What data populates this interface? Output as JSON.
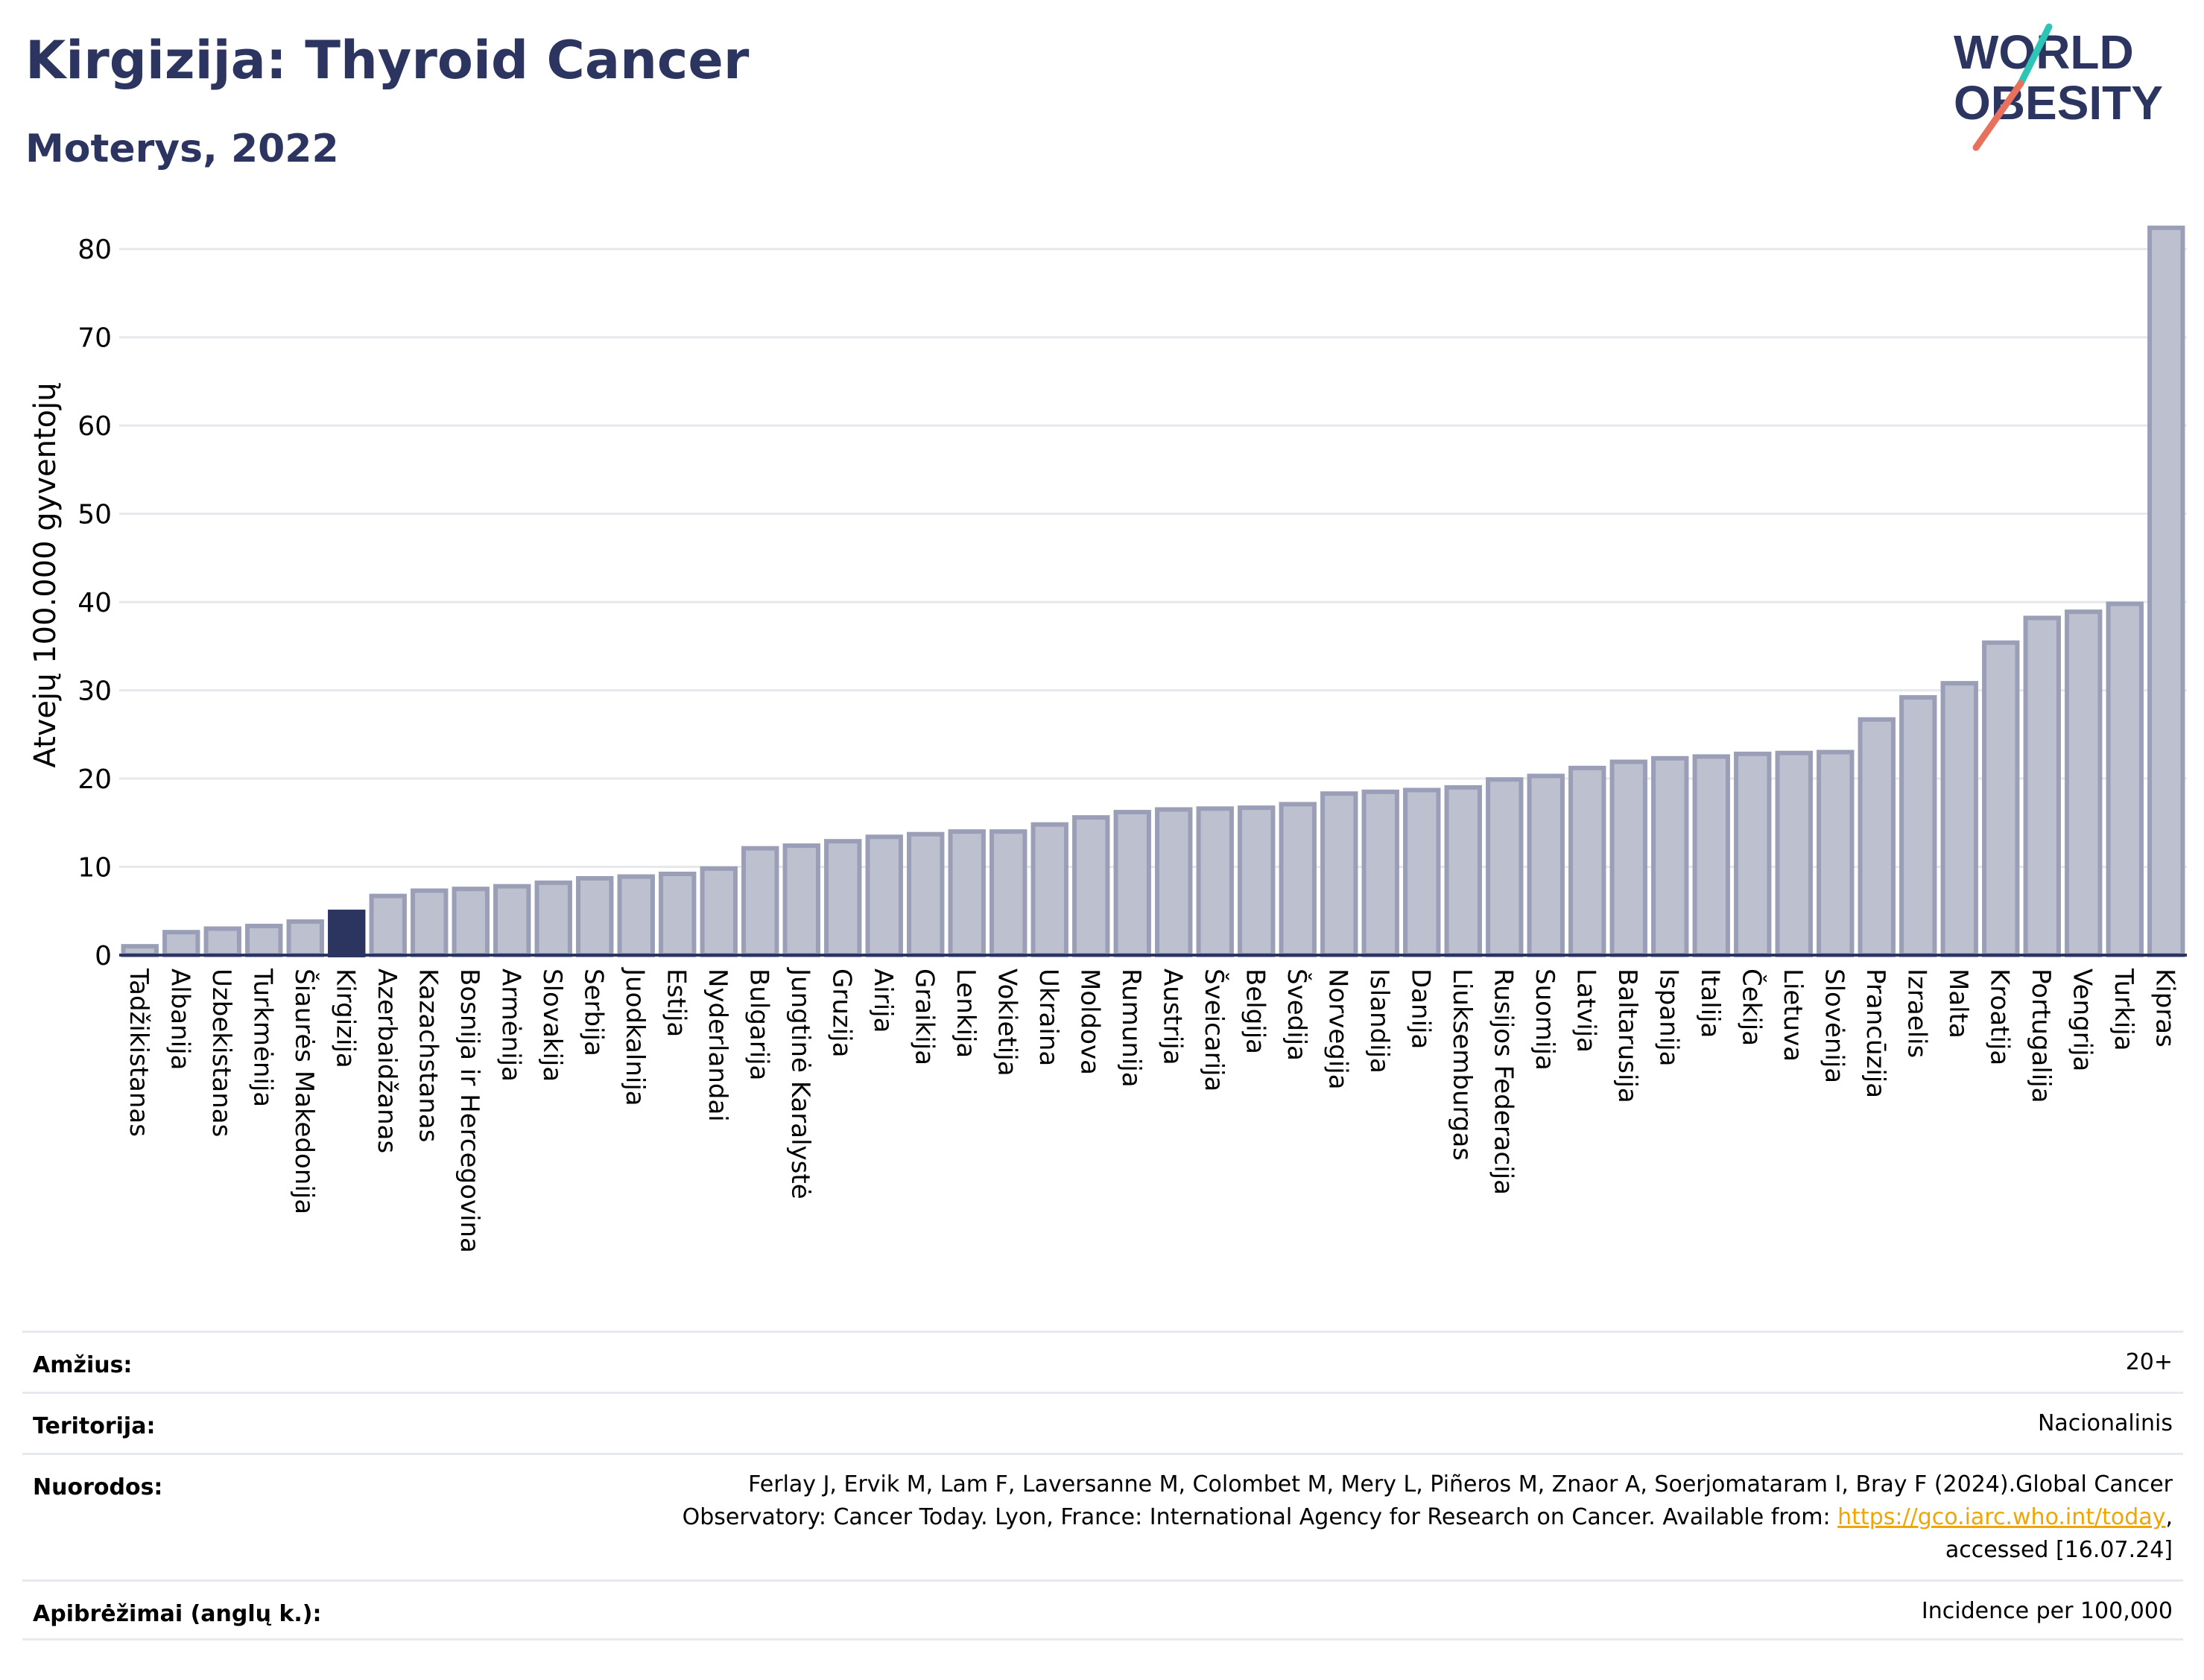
{
  "header": {
    "title": "Kirgizija: Thyroid Cancer",
    "subtitle": "Moterys, 2022",
    "logo_text_line1": "WORLD",
    "logo_text_line2": "OBESITY"
  },
  "colors": {
    "title": "#2c3560",
    "bar_fill": "#bcc0cf",
    "bar_stroke": "#9a9fb7",
    "highlight": "#2c3560",
    "logo_teal": "#2ec4b6",
    "logo_coral": "#e8705c",
    "link": "#f0a500"
  },
  "chart_data": {
    "type": "bar",
    "ylabel": "Atvejų 100.000 gyventojų",
    "ylim": [
      0,
      85
    ],
    "yticks": [
      0,
      10,
      20,
      30,
      40,
      50,
      60,
      70,
      80
    ],
    "grid": true,
    "highlight_category": "Kirgizija",
    "categories": [
      "Tadžikistanas",
      "Albanija",
      "Uzbekistanas",
      "Turkmėnija",
      "Šiaurės Makedonija",
      "Kirgizija",
      "Azerbaidžanas",
      "Kazachstanas",
      "Bosnija ir Hercegovina",
      "Armėnija",
      "Slovakija",
      "Serbija",
      "Juodkalnija",
      "Estija",
      "Nyderlandai",
      "Bulgarija",
      "Jungtinė Karalystė",
      "Gruzija",
      "Airija",
      "Graikija",
      "Lenkija",
      "Vokietija",
      "Ukraina",
      "Moldova",
      "Rumunija",
      "Austrija",
      "Šveicarija",
      "Belgija",
      "Švedija",
      "Norvegija",
      "Islandija",
      "Danija",
      "Liuksemburgas",
      "Rusijos Federacija",
      "Suomija",
      "Latvija",
      "Baltarusija",
      "Ispanija",
      "Italija",
      "Čekija",
      "Lietuva",
      "Slovėnija",
      "Prancūzija",
      "Izraelis",
      "Malta",
      "Kroatija",
      "Portugalija",
      "Vengrija",
      "Turkija",
      "Kipras"
    ],
    "values": [
      1.0,
      2.6,
      3.0,
      3.3,
      3.8,
      4.9,
      6.7,
      7.3,
      7.5,
      7.8,
      8.2,
      8.7,
      8.9,
      9.2,
      9.8,
      12.1,
      12.4,
      12.9,
      13.4,
      13.7,
      14.0,
      14.0,
      14.8,
      15.6,
      16.2,
      16.5,
      16.6,
      16.7,
      17.1,
      18.3,
      18.5,
      18.7,
      19.0,
      19.9,
      20.3,
      21.2,
      21.9,
      22.3,
      22.5,
      22.8,
      22.9,
      23.0,
      26.7,
      29.2,
      30.8,
      35.4,
      38.2,
      38.9,
      39.8,
      82.4
    ]
  },
  "meta": {
    "rows": [
      {
        "label": "Amžius:",
        "value": "20+"
      },
      {
        "label": "Teritorija:",
        "value": "Nacionalinis"
      },
      {
        "label": "Nuorodos:",
        "value_line1": "Ferlay J, Ervik M, Lam F, Laversanne M, Colombet M, Mery L, Piñeros M, Znaor A, Soerjomataram I, Bray F (2024).Global Cancer",
        "value_line2_pre": "Observatory: Cancer Today. Lyon, France: International Agency for Research on Cancer. Available from: ",
        "value_link": "https://gco.iarc.who.int/today",
        "value_line2_post": ",",
        "value_line3": "accessed [16.07.24]"
      },
      {
        "label": "Apibrėžimai (anglų k.):",
        "value": "Incidence per 100,000"
      }
    ]
  }
}
